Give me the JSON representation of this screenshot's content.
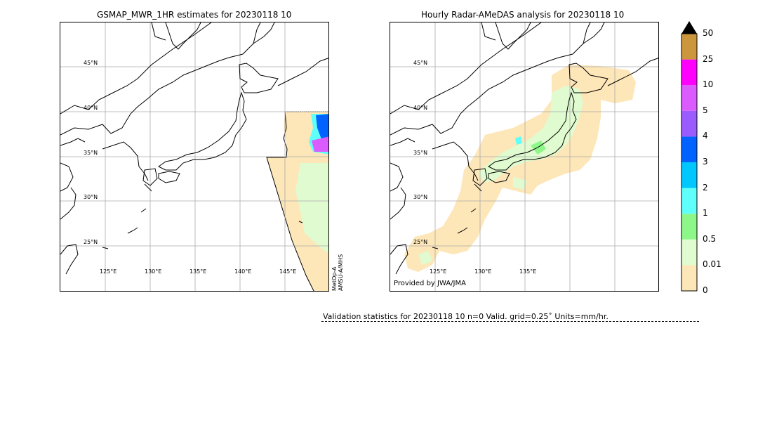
{
  "left_panel": {
    "title": "GSMAP_MWR_1HR estimates for 20230118 10",
    "lat_labels": [
      "45°N",
      "40°N",
      "35°N",
      "30°N",
      "25°N"
    ],
    "lon_labels": [
      "125°E",
      "130°E",
      "135°E",
      "140°E",
      "145°E"
    ],
    "satellite_label_1": "MetOp-A",
    "satellite_label_2": "AMSU-A/MHS"
  },
  "right_panel": {
    "title": "Hourly Radar-AMeDAS analysis for 20230118 10",
    "lat_labels": [
      "45°N",
      "40°N",
      "35°N",
      "30°N",
      "25°N"
    ],
    "lon_labels": [
      "125°E",
      "130°E",
      "135°E"
    ],
    "provider": "Provided by JWA/JMA"
  },
  "colorbar": {
    "ticks": [
      "0",
      "0.01",
      "0.5",
      "1",
      "2",
      "3",
      "4",
      "5",
      "10",
      "25",
      "50"
    ],
    "colors": [
      "#fde6b8",
      "#e0fbd0",
      "#8ef78a",
      "#5ffffb",
      "#00c8ff",
      "#0063ff",
      "#9a5cff",
      "#da5cff",
      "#ff00ff",
      "#cc963c",
      "#000000"
    ]
  },
  "validation": {
    "text": "Validation statistics for 20230118 10  n=0 Valid. grid=0.25˚ Units=mm/hr."
  }
}
